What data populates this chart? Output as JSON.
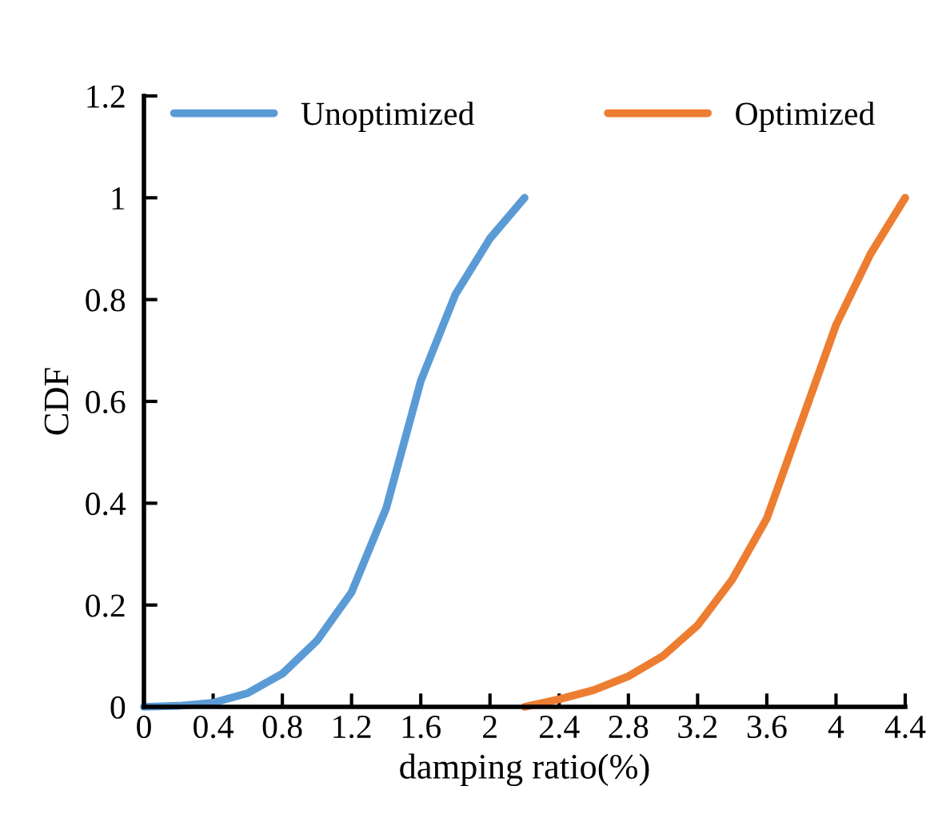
{
  "chart_data": {
    "type": "line",
    "xlabel": "damping ratio(%)",
    "ylabel": "CDF",
    "xlim": [
      0,
      4.4
    ],
    "xticks": [
      0,
      0.4,
      0.8,
      1.2,
      1.6,
      2,
      2.4,
      2.8,
      3.2,
      3.6,
      4,
      4.4
    ],
    "ylim": [
      0,
      1.2
    ],
    "yticks": [
      0,
      0.2,
      0.4,
      0.6,
      0.8,
      1,
      1.2
    ],
    "grid": false,
    "legend": "top",
    "marker": "none",
    "line_style": "solid",
    "series": [
      {
        "name": "Unoptimized",
        "color": "#5b9bd5",
        "x": [
          0,
          0.2,
          0.4,
          0.6,
          0.8,
          1.0,
          1.2,
          1.4,
          1.6,
          1.8,
          2.0,
          2.2
        ],
        "values": [
          0,
          0.002,
          0.008,
          0.027,
          0.065,
          0.13,
          0.225,
          0.39,
          0.64,
          0.81,
          0.92,
          1.0
        ]
      },
      {
        "name": "Optimized",
        "color": "#ed7d31",
        "x": [
          2.2,
          2.4,
          2.6,
          2.8,
          3.0,
          3.2,
          3.4,
          3.6,
          3.8,
          4.0,
          4.2,
          4.4
        ],
        "values": [
          0,
          0.015,
          0.033,
          0.06,
          0.1,
          0.16,
          0.25,
          0.37,
          0.56,
          0.75,
          0.89,
          1.0
        ]
      }
    ]
  }
}
